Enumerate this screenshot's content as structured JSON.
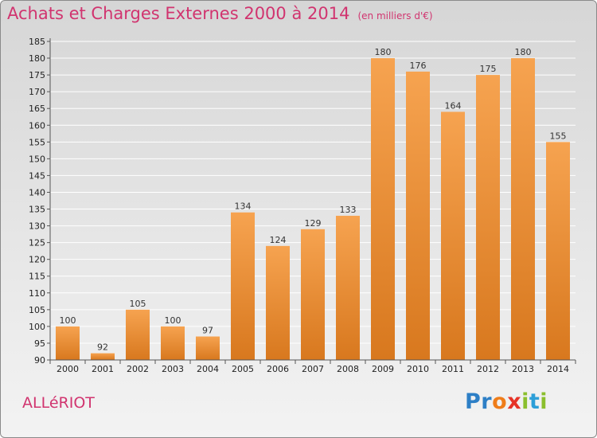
{
  "title": "Achats et Charges Externes 2000 à 2014",
  "unit_note": "(en milliers d'€)",
  "location_name": "ALLéRIOT",
  "logo_text": "Proxiti",
  "colors": {
    "bar_light": "#f6a350",
    "bar_dark": "#d8781e",
    "title": "#d1346f",
    "grid": "#ffffff"
  },
  "chart_data": {
    "type": "bar",
    "title": "Achats et Charges Externes 2000 à 2014",
    "xlabel": "",
    "ylabel": "",
    "categories": [
      "2000",
      "2001",
      "2002",
      "2003",
      "2004",
      "2005",
      "2006",
      "2007",
      "2008",
      "2009",
      "2010",
      "2011",
      "2012",
      "2013",
      "2014"
    ],
    "values": [
      100,
      92,
      105,
      100,
      97,
      134,
      124,
      129,
      133,
      180,
      176,
      164,
      175,
      180,
      155
    ],
    "ylim": [
      90,
      185
    ],
    "yticks": [
      90,
      95,
      100,
      105,
      110,
      115,
      120,
      125,
      130,
      135,
      140,
      145,
      150,
      155,
      160,
      165,
      170,
      175,
      180,
      185
    ],
    "grid": true,
    "data_labels": true
  }
}
